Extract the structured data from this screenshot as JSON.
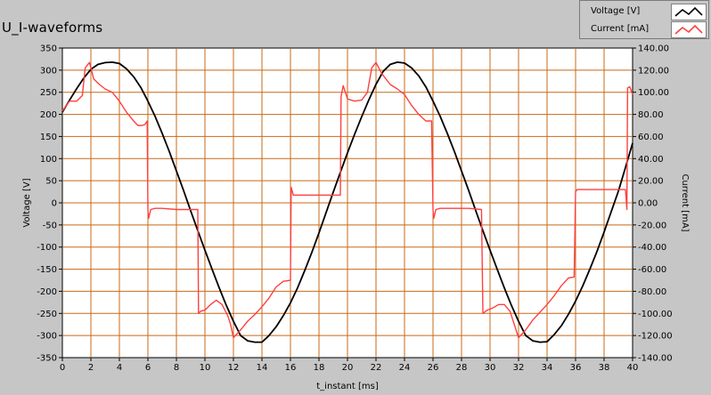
{
  "panel": {
    "title": "U_I-waveforms"
  },
  "legend": [
    {
      "name": "Voltage [V]",
      "color": "#000000"
    },
    {
      "name": "Current [mA]",
      "color": "#ff4040"
    }
  ],
  "chart_data": {
    "type": "line",
    "title": "U_I-waveforms",
    "xlabel": "t_instant [ms]",
    "ylabel_left": "Voltage [V]",
    "ylabel_right": "Current [mA]",
    "xlim": [
      0,
      40
    ],
    "ylim_left": [
      -350,
      350
    ],
    "ylim_right": [
      -140,
      140
    ],
    "x_ticks": [
      "0",
      "2",
      "4",
      "6",
      "8",
      "10",
      "12",
      "14",
      "16",
      "18",
      "20",
      "22",
      "24",
      "26",
      "28",
      "30",
      "32",
      "34",
      "36",
      "38",
      "40"
    ],
    "y_left_ticks": [
      "350",
      "300",
      "250",
      "200",
      "150",
      "100",
      "50",
      "0",
      "-50",
      "-100",
      "-150",
      "-200",
      "-250",
      "-300",
      "-350"
    ],
    "y_right_ticks": [
      "140.00",
      "120.00",
      "100.00",
      "80.00",
      "60.00",
      "40.00",
      "20.00",
      "0.00",
      "-20.00",
      "-40.00",
      "-60.00",
      "-80.00",
      "-100.00",
      "-120.00",
      "-140.00"
    ],
    "grid": true,
    "series": [
      {
        "name": "Voltage [V]",
        "axis": "left",
        "color": "#000000",
        "points": [
          [
            0,
            205
          ],
          [
            0.5,
            232
          ],
          [
            1,
            258
          ],
          [
            1.5,
            282
          ],
          [
            2,
            302
          ],
          [
            2.5,
            313
          ],
          [
            3,
            317
          ],
          [
            3.5,
            318
          ],
          [
            4,
            315
          ],
          [
            4.5,
            303
          ],
          [
            5,
            285
          ],
          [
            5.5,
            261
          ],
          [
            6,
            230
          ],
          [
            6.5,
            196
          ],
          [
            7,
            157
          ],
          [
            7.5,
            116
          ],
          [
            8,
            72
          ],
          [
            8.5,
            28
          ],
          [
            9,
            -18
          ],
          [
            9.5,
            -63
          ],
          [
            10,
            -107
          ],
          [
            10.5,
            -150
          ],
          [
            11,
            -192
          ],
          [
            11.5,
            -232
          ],
          [
            12,
            -268
          ],
          [
            12.5,
            -300
          ],
          [
            13,
            -312
          ],
          [
            13.5,
            -315
          ],
          [
            14,
            -315
          ],
          [
            14.5,
            -300
          ],
          [
            15,
            -280
          ],
          [
            15.5,
            -255
          ],
          [
            16,
            -226
          ],
          [
            16.5,
            -192
          ],
          [
            17,
            -153
          ],
          [
            17.5,
            -112
          ],
          [
            18,
            -68
          ],
          [
            18.5,
            -22
          ],
          [
            19,
            24
          ],
          [
            19.5,
            69
          ],
          [
            20,
            113
          ],
          [
            20.5,
            155
          ],
          [
            21,
            195
          ],
          [
            21.5,
            233
          ],
          [
            22,
            268
          ],
          [
            22.5,
            297
          ],
          [
            23,
            313
          ],
          [
            23.5,
            318
          ],
          [
            24,
            316
          ],
          [
            24.5,
            305
          ],
          [
            25,
            287
          ],
          [
            25.5,
            262
          ],
          [
            26,
            230
          ],
          [
            26.5,
            196
          ],
          [
            27,
            157
          ],
          [
            27.5,
            116
          ],
          [
            28,
            72
          ],
          [
            28.5,
            28
          ],
          [
            29,
            -18
          ],
          [
            29.5,
            -63
          ],
          [
            30,
            -107
          ],
          [
            30.5,
            -150
          ],
          [
            31,
            -192
          ],
          [
            31.5,
            -232
          ],
          [
            32,
            -268
          ],
          [
            32.5,
            -300
          ],
          [
            33,
            -312
          ],
          [
            33.5,
            -315
          ],
          [
            34,
            -314
          ],
          [
            34.5,
            -298
          ],
          [
            35,
            -278
          ],
          [
            35.5,
            -252
          ],
          [
            36,
            -222
          ],
          [
            36.5,
            -188
          ],
          [
            37,
            -150
          ],
          [
            37.5,
            -110
          ],
          [
            38,
            -66
          ],
          [
            38.5,
            -20
          ],
          [
            39,
            26
          ],
          [
            39.5,
            80
          ],
          [
            40,
            135
          ]
        ]
      },
      {
        "name": "Current [mA]",
        "axis": "right",
        "color": "#ff4040",
        "points": [
          [
            0,
            83
          ],
          [
            0.5,
            92
          ],
          [
            1,
            92
          ],
          [
            1.4,
            97
          ],
          [
            1.6,
            122
          ],
          [
            1.9,
            127
          ],
          [
            2.2,
            112
          ],
          [
            2.6,
            107
          ],
          [
            3,
            103
          ],
          [
            3.5,
            100
          ],
          [
            4,
            92
          ],
          [
            4.5,
            82
          ],
          [
            5,
            74
          ],
          [
            5.3,
            70
          ],
          [
            5.6,
            70
          ],
          [
            5.8,
            71
          ],
          [
            5.95,
            74
          ],
          [
            6.0,
            -6
          ],
          [
            6.05,
            -14
          ],
          [
            6.2,
            -6
          ],
          [
            6.5,
            -5
          ],
          [
            7,
            -5
          ],
          [
            8,
            -6
          ],
          [
            8.5,
            -6
          ],
          [
            9,
            -6
          ],
          [
            9.5,
            -6
          ],
          [
            9.55,
            -100
          ],
          [
            9.7,
            -98
          ],
          [
            10,
            -97
          ],
          [
            10.4,
            -92
          ],
          [
            10.8,
            -88
          ],
          [
            11.2,
            -92
          ],
          [
            11.6,
            -102
          ],
          [
            11.8,
            -110
          ],
          [
            12.0,
            -122
          ],
          [
            12.5,
            -115
          ],
          [
            13,
            -107
          ],
          [
            13.5,
            -101
          ],
          [
            14,
            -94
          ],
          [
            14.5,
            -86
          ],
          [
            15,
            -76
          ],
          [
            15.5,
            -71
          ],
          [
            16,
            -70
          ],
          [
            16.05,
            14
          ],
          [
            16.2,
            7
          ],
          [
            17,
            7
          ],
          [
            18,
            7
          ],
          [
            19,
            7
          ],
          [
            19.5,
            7
          ],
          [
            19.55,
            96
          ],
          [
            19.7,
            106
          ],
          [
            20,
            94
          ],
          [
            20.5,
            92
          ],
          [
            21,
            93
          ],
          [
            21.4,
            100
          ],
          [
            21.7,
            122
          ],
          [
            22,
            127
          ],
          [
            22.4,
            117
          ],
          [
            23,
            107
          ],
          [
            23.5,
            103
          ],
          [
            24,
            98
          ],
          [
            24.5,
            88
          ],
          [
            25,
            80
          ],
          [
            25.5,
            74
          ],
          [
            25.9,
            74
          ],
          [
            26.0,
            -6
          ],
          [
            26.05,
            -14
          ],
          [
            26.2,
            -6
          ],
          [
            26.5,
            -5
          ],
          [
            27,
            -5
          ],
          [
            28,
            -5
          ],
          [
            28.5,
            -5
          ],
          [
            29.4,
            -6
          ],
          [
            29.5,
            -100
          ],
          [
            29.8,
            -97
          ],
          [
            30.2,
            -95
          ],
          [
            30.6,
            -92
          ],
          [
            31,
            -92
          ],
          [
            31.4,
            -98
          ],
          [
            31.7,
            -110
          ],
          [
            32,
            -122
          ],
          [
            32.5,
            -115
          ],
          [
            33,
            -106
          ],
          [
            33.5,
            -99
          ],
          [
            34,
            -92
          ],
          [
            34.5,
            -84
          ],
          [
            35,
            -75
          ],
          [
            35.5,
            -68
          ],
          [
            35.9,
            -67
          ],
          [
            36.0,
            10
          ],
          [
            36.1,
            12
          ],
          [
            37,
            12
          ],
          [
            38,
            12
          ],
          [
            38.5,
            12
          ],
          [
            39.5,
            12
          ],
          [
            39.6,
            -6
          ],
          [
            39.65,
            104
          ],
          [
            39.8,
            105
          ],
          [
            40,
            98
          ]
        ]
      }
    ]
  }
}
